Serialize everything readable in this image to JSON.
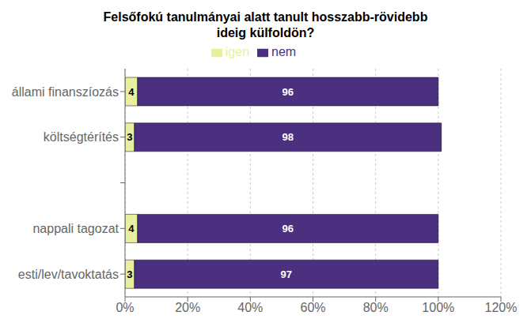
{
  "chart_data": {
    "type": "bar",
    "orientation": "horizontal",
    "stacked": true,
    "title": "Felsőfokú tanulmányai alatt tanult hosszabb-rövidebb\nideig külfoldön?",
    "categories": [
      "állami finanszíozás",
      "költségtérítés",
      null,
      "nappali tagozat",
      "esti/lev/tavoktatás"
    ],
    "series": [
      {
        "name": "igen",
        "color": "#e8f0a0",
        "values": [
          4,
          3,
          0,
          4,
          3
        ]
      },
      {
        "name": "nem",
        "color": "#4b3080",
        "values": [
          96,
          98,
          0,
          96,
          97
        ]
      }
    ],
    "xlim": [
      0,
      120
    ],
    "xticks": [
      {
        "value": 0,
        "label": "0%"
      },
      {
        "value": 20,
        "label": "20%"
      },
      {
        "value": 40,
        "label": "40%"
      },
      {
        "value": 60,
        "label": "60%"
      },
      {
        "value": 80,
        "label": "80%"
      },
      {
        "value": 100,
        "label": "100%"
      },
      {
        "value": 120,
        "label": "120%"
      }
    ],
    "grid": true,
    "legend": "top",
    "data_labels": true
  }
}
